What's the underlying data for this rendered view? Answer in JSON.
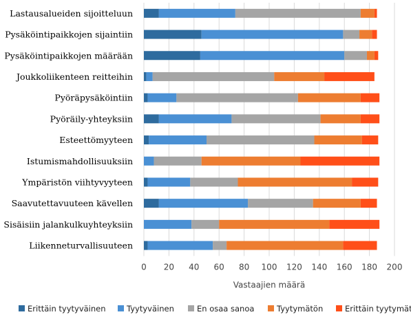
{
  "chart_data": {
    "type": "bar",
    "orientation": "horizontal",
    "stacked": true,
    "categories": [
      "Lastausalueiden sijoitteluun",
      "Pysäköintipaikkojen sijaintiin",
      "Pysäköintipaikkojen määrään",
      "Joukkoliikenteen reitteihin",
      "Pyöräpysäköintiin",
      "Pyöräily-yhteyksiin",
      "Esteettömyyteen",
      "Istumismahdollisuuksiin",
      "Ympäristön viihtyvyyteen",
      "Saavutettavuuteen kävellen",
      "Sisäisiin jalankulkuyhteyksiin",
      "Liikenneturvallisuuteen"
    ],
    "series": [
      {
        "name": "Erittäin tyytyväinen",
        "color": "#2e6b9e",
        "values": [
          12,
          46,
          45,
          2,
          3,
          12,
          4,
          0,
          3,
          12,
          0,
          3
        ]
      },
      {
        "name": "Tyytyväinen",
        "color": "#4a90d4",
        "values": [
          61,
          113,
          115,
          5,
          23,
          58,
          46,
          8,
          34,
          71,
          38,
          52
        ]
      },
      {
        "name": "En osaa sanoa",
        "color": "#a5a5a5",
        "values": [
          100,
          13,
          18,
          97,
          97,
          71,
          86,
          38,
          38,
          52,
          22,
          11
        ]
      },
      {
        "name": "Tyytymätön",
        "color": "#ed7d31",
        "values": [
          11,
          10,
          6,
          40,
          50,
          32,
          38,
          79,
          91,
          38,
          88,
          93
        ]
      },
      {
        "name": "Erittäin tyytymätön",
        "color": "#ff4f19",
        "values": [
          2,
          4,
          3,
          40,
          15,
          15,
          13,
          63,
          21,
          13,
          40,
          27
        ]
      }
    ],
    "xlabel": "Vastaajien määrä",
    "ylabel": "",
    "xlim": [
      0,
      200
    ],
    "xticks": [
      0,
      20,
      40,
      60,
      80,
      100,
      120,
      140,
      160,
      180,
      200
    ],
    "grid": "vertical",
    "legend_position": "bottom"
  }
}
